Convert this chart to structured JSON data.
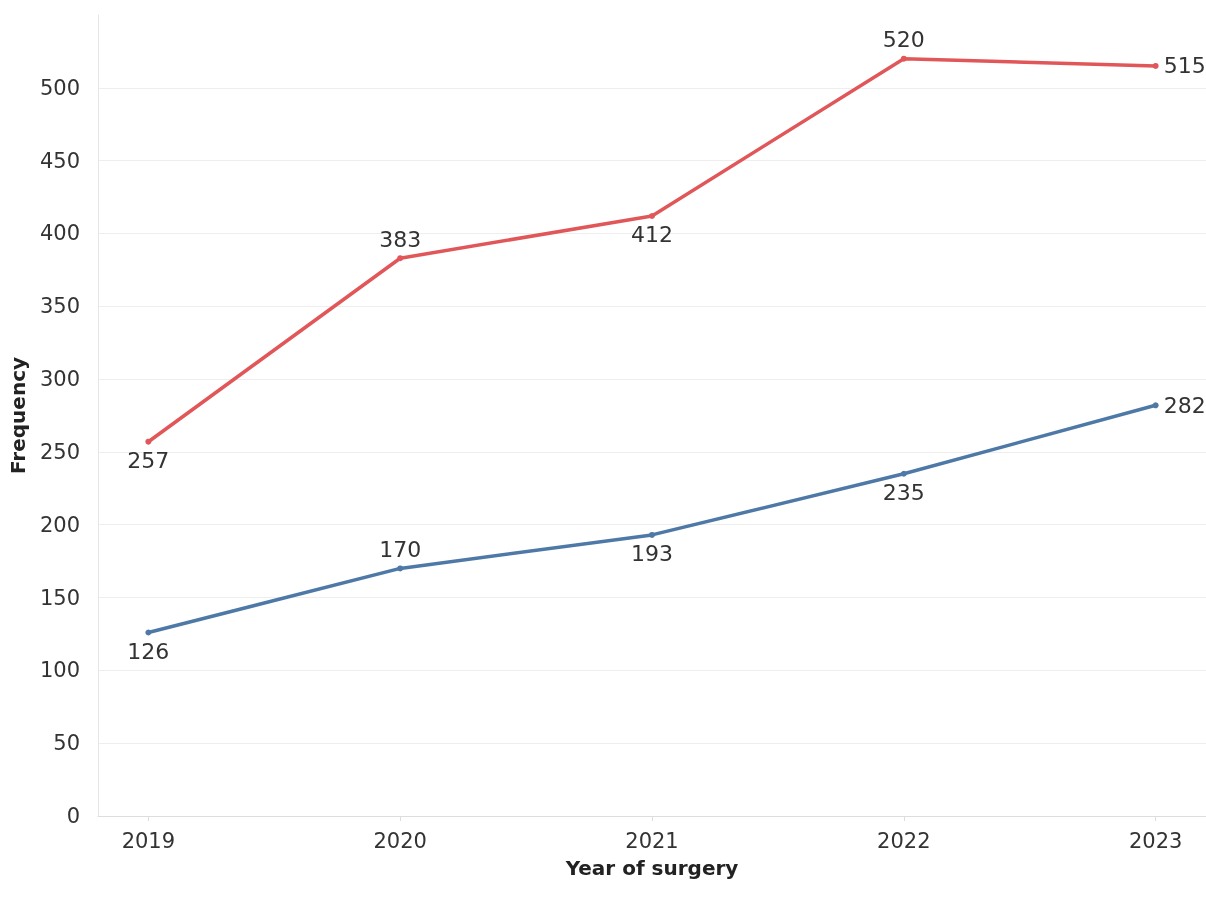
{
  "chart_data": {
    "type": "line",
    "xlabel": "Year of surgery",
    "ylabel": "Frequency",
    "x": [
      2019,
      2020,
      2021,
      2022,
      2023
    ],
    "xlim": [
      2018.8,
      2023.2
    ],
    "xticks": [
      2019,
      2020,
      2021,
      2022,
      2023
    ],
    "ylim": [
      0,
      550
    ],
    "yticks": [
      0,
      50,
      100,
      150,
      200,
      250,
      300,
      350,
      400,
      450,
      500
    ],
    "series": [
      {
        "color": "#e15759",
        "values": [
          257,
          383,
          412,
          520,
          515
        ]
      },
      {
        "color": "#4e79a7",
        "values": [
          126,
          170,
          193,
          235,
          282
        ]
      }
    ],
    "grid": "y",
    "marker": "circle",
    "line_style": "solid",
    "data_labels": true
  }
}
